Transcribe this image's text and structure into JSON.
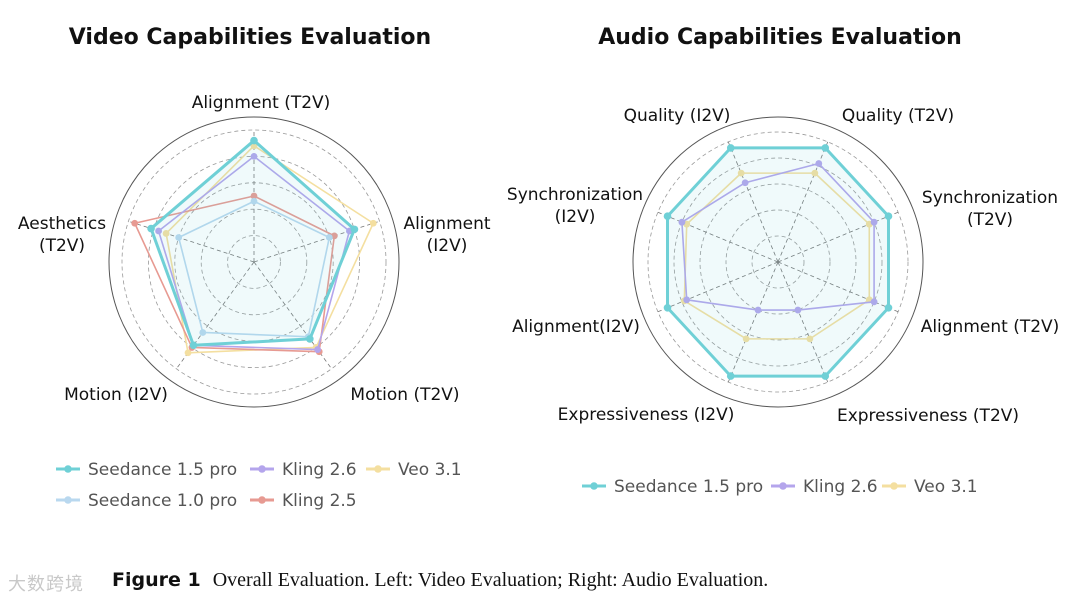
{
  "chart_data": [
    {
      "type": "radar",
      "title": "Video Capabilities Evaluation",
      "axes": [
        "Alignment (T2V)",
        "Alignment\n(I2V)",
        "Motion (T2V)",
        "Motion (I2V)",
        "Aesthetics\n(T2V)"
      ],
      "rlim": [
        0,
        1
      ],
      "grid": "dashed rings",
      "legend": "bottom",
      "series": [
        {
          "name": "Seedance 1.5 pro",
          "color": "#6fd0d6",
          "values": [
            0.92,
            0.8,
            0.72,
            0.78,
            0.82
          ]
        },
        {
          "name": "Seedance 1.0 pro",
          "color": "#b9d8ef",
          "values": [
            0.46,
            0.6,
            0.7,
            0.66,
            0.6
          ]
        },
        {
          "name": "Kling 2.6",
          "color": "#b4a5ec",
          "values": [
            0.8,
            0.76,
            0.82,
            0.78,
            0.76
          ]
        },
        {
          "name": "Kling 2.5",
          "color": "#e79a92",
          "values": [
            0.5,
            0.64,
            0.84,
            0.8,
            0.95
          ]
        },
        {
          "name": "Veo 3.1",
          "color": "#f4dfa0",
          "values": [
            0.88,
            0.95,
            0.8,
            0.85,
            0.7
          ]
        }
      ]
    },
    {
      "type": "radar",
      "title": "Audio Capabilities Evaluation",
      "axes": [
        "Quality (T2V)",
        "Synchronization\n(T2V)",
        "Alignment (T2V)",
        "Expressiveness (T2V)",
        "Expressiveness (I2V)",
        "Alignment(I2V)",
        "Synchronization\n(I2V)",
        "Quality (I2V)"
      ],
      "rlim": [
        0,
        1
      ],
      "grid": "dashed rings",
      "legend": "bottom",
      "series": [
        {
          "name": "Seedance 1.5 pro",
          "color": "#6fd0d6",
          "values": [
            0.95,
            0.92,
            0.92,
            0.95,
            0.95,
            0.92,
            0.92,
            0.95
          ]
        },
        {
          "name": "Kling 2.6",
          "color": "#b4a5ec",
          "values": [
            0.82,
            0.8,
            0.8,
            0.4,
            0.4,
            0.76,
            0.8,
            0.66
          ]
        },
        {
          "name": "Veo 3.1",
          "color": "#f4dfa0",
          "values": [
            0.74,
            0.76,
            0.76,
            0.64,
            0.64,
            0.78,
            0.76,
            0.74
          ]
        }
      ]
    }
  ],
  "legend_left": [
    "Seedance 1.5 pro",
    "Kling 2.6",
    "Veo 3.1",
    "Seedance 1.0 pro",
    "Kling 2.5"
  ],
  "legend_right": [
    "Seedance 1.5 pro",
    "Kling 2.6",
    "Veo 3.1"
  ],
  "caption": {
    "label": "Figure 1",
    "text": "Overall Evaluation. Left: Video Evaluation; Right: Audio Evaluation."
  },
  "watermark": "大数跨境"
}
